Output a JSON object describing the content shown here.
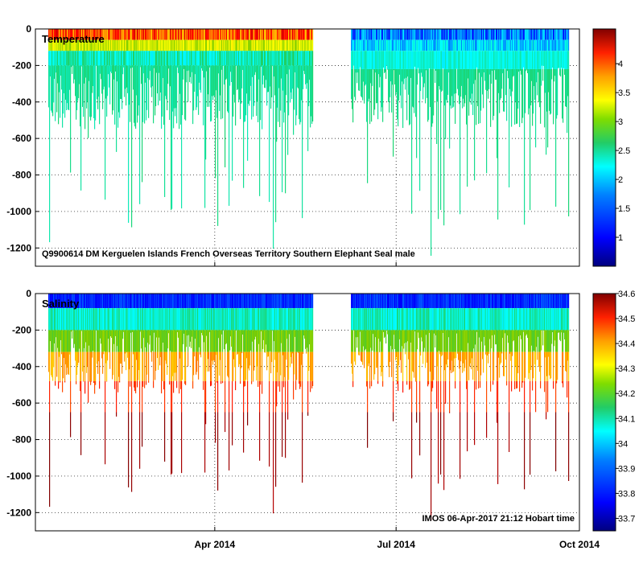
{
  "chart_data": [
    {
      "type": "heatmap",
      "title": "Temperature",
      "annotation": "Q9900614 DM Kerguelen Islands French Overseas Territory Southern Elephant Seal  male",
      "variable": "temperature",
      "ylim": [
        -1300,
        0
      ],
      "yticks": [
        0,
        -200,
        -400,
        -600,
        -800,
        -1000,
        -1200
      ],
      "x_range_days": [
        0,
        273
      ],
      "xticks": [
        {
          "day": 90,
          "label": "Apr 2014"
        },
        {
          "day": 181,
          "label": "Jul 2014"
        },
        {
          "day": 273,
          "label": "Oct 2014"
        }
      ],
      "colorbar": {
        "range": [
          0.5,
          4.6
        ],
        "ticks": [
          1,
          1.5,
          2,
          2.5,
          3,
          3.5,
          4
        ]
      },
      "data_gap_days": [
        139,
        158
      ],
      "typical_values": {
        "surface_early": 3.5,
        "subsurface": 2.0,
        "surface_late": 1.0
      },
      "grid": true
    },
    {
      "type": "heatmap",
      "title": "Salinity",
      "annotation": "IMOS 06-Apr-2017 21:12 Hobart time",
      "variable": "salinity",
      "ylim": [
        -1300,
        0
      ],
      "yticks": [
        0,
        -200,
        -400,
        -600,
        -800,
        -1000,
        -1200
      ],
      "x_range_days": [
        0,
        273
      ],
      "xticks": [
        {
          "day": 90,
          "label": "Apr 2014"
        },
        {
          "day": 181,
          "label": "Jul 2014"
        },
        {
          "day": 273,
          "label": "Oct 2014"
        }
      ],
      "colorbar": {
        "range": [
          33.65,
          34.6
        ],
        "ticks": [
          33.7,
          33.8,
          33.9,
          34,
          34.1,
          34.2,
          34.3,
          34.4,
          34.5,
          34.6
        ]
      },
      "data_gap_days": [
        139,
        158
      ],
      "typical_values": {
        "surface": 33.8,
        "mid": 34.1,
        "deep": 34.5
      },
      "grid": true
    }
  ],
  "colors": {
    "jet": [
      "#00007f",
      "#0000ff",
      "#007fff",
      "#00ffff",
      "#22cc55",
      "#7fcc00",
      "#ffff00",
      "#ff7f00",
      "#ff0000",
      "#7f0000"
    ]
  }
}
